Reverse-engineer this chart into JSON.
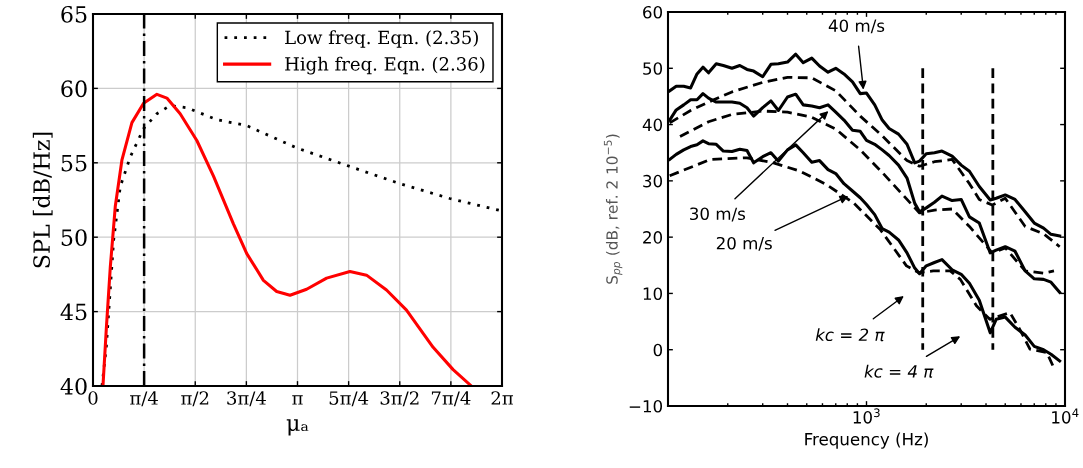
{
  "chart_data": [
    {
      "type": "line",
      "xlabel": "μₐ",
      "ylabel": "SPL [dB/Hz]",
      "xlim": [
        0,
        6.2832
      ],
      "ylim": [
        40,
        65
      ],
      "xticks": [
        0,
        {
          "value": 0.7854,
          "label": "π/4"
        },
        {
          "value": 1.5708,
          "label": "π/2"
        },
        {
          "value": 2.3562,
          "label": "3π/4"
        },
        {
          "value": 3.1416,
          "label": "π"
        },
        {
          "value": 3.927,
          "label": "5π/4"
        },
        {
          "value": 4.7124,
          "label": "3π/2"
        },
        {
          "value": 5.4978,
          "label": "7π/4"
        },
        {
          "value": 6.2832,
          "label": "2π"
        }
      ],
      "yticks": [
        40,
        45,
        50,
        55,
        60,
        65
      ],
      "grid": true,
      "legend": "top right",
      "ref_lines": [
        {
          "axis": "x",
          "value": 0.7854,
          "color": "#000000",
          "line_style": "dashdot"
        }
      ],
      "series": [
        {
          "name": "Low freq. Eqn. (2.35)",
          "color": "#000000",
          "line_style": "dotted",
          "x": [
            0.138,
            0.204,
            0.317,
            0.419,
            0.573,
            0.777,
            0.982,
            1.186,
            1.442,
            1.902,
            2.362,
            3.129,
            3.947,
            4.714,
            5.481,
            6.247
          ],
          "values": [
            40,
            42.6,
            49.8,
            53.4,
            55.4,
            57.3,
            58.3,
            58.85,
            58.7,
            57.9,
            57.5,
            56.0,
            54.75,
            53.6,
            52.6,
            51.8
          ]
        },
        {
          "name": "High freq. Eqn. (2.36)",
          "color": "#ff0000",
          "line_style": "solid",
          "x": [
            0.153,
            0.204,
            0.266,
            0.343,
            0.445,
            0.598,
            0.777,
            0.982,
            1.135,
            1.339,
            1.595,
            1.851,
            2.157,
            2.362,
            2.618,
            2.822,
            3.027,
            3.282,
            3.589,
            3.947,
            4.202,
            4.509,
            4.816,
            5.225,
            5.532,
            5.813
          ],
          "values": [
            40,
            43.8,
            48.0,
            52.1,
            55.2,
            57.7,
            59.0,
            59.6,
            59.35,
            58.3,
            56.5,
            54.1,
            50.9,
            48.9,
            47.1,
            46.35,
            46.1,
            46.5,
            47.25,
            47.7,
            47.45,
            46.45,
            45.1,
            42.6,
            41.1,
            40
          ]
        }
      ]
    },
    {
      "type": "line",
      "xlabel": "Frequency (Hz)",
      "ylabel": "S$_{pp}$ (dB, ref. 2 10$^{−5}$)",
      "log": "x",
      "xlim": [
        100,
        10000
      ],
      "ylim": [
        -10,
        60
      ],
      "xticks": [
        {
          "value": 1000,
          "label": "10$^{3}$"
        },
        {
          "value": 10000,
          "label": "10$^{4}$"
        }
      ],
      "yticks": [
        {
          "value": -10,
          "label": "−10"
        },
        0,
        10,
        20,
        30,
        40,
        50,
        60
      ],
      "grid": false,
      "annotations": [
        {
          "text": "40 m/s",
          "x": 965,
          "y": 46.2
        },
        {
          "text": "30 m/s",
          "x": 643,
          "y": 42.4
        },
        {
          "text": "20 m/s",
          "x": 810,
          "y": 27.3
        },
        "kc = 2 π",
        "kc = 4 π"
      ],
      "series": [
        {
          "color": "#000000",
          "line_style": "solid",
          "x": [
            102,
            110,
            120,
            130,
            140,
            150,
            160,
            175,
            190,
            210,
            230,
            250,
            270,
            300,
            330,
            360,
            400,
            440,
            480,
            530,
            580,
            640,
            700,
            770,
            850,
            930,
            1000,
            1100,
            1200,
            1300,
            1450,
            1600,
            1750,
            1850,
            2000,
            2200,
            2400,
            2700,
            3000,
            3300,
            3700,
            4200,
            4500,
            5000,
            5600,
            6300,
            7000,
            7800,
            8500,
            9400
          ],
          "values": [
            46,
            46.8,
            46.8,
            46.5,
            49,
            50.2,
            49.2,
            50.8,
            50.5,
            50,
            50.5,
            49.8,
            49.5,
            48.5,
            50.7,
            50.8,
            51.1,
            52.5,
            51,
            51.8,
            50.4,
            49.3,
            50,
            49,
            47.6,
            45.5,
            45.6,
            43.5,
            40.8,
            39.3,
            38.3,
            36.5,
            33.2,
            33.5,
            34.8,
            35,
            35.3,
            34.4,
            32.8,
            31.7,
            29,
            26.6,
            26.9,
            27.5,
            26.7,
            24.5,
            22.5,
            21.6,
            20.5,
            20.2
          ]
        },
        {
          "color": "#000000",
          "line_style": "solid",
          "x": [
            102,
            110,
            120,
            130,
            140,
            150,
            160,
            175,
            190,
            210,
            230,
            250,
            270,
            300,
            330,
            360,
            400,
            440,
            480,
            530,
            580,
            640,
            700,
            770,
            850,
            930,
            1000,
            1100,
            1200,
            1300,
            1450,
            1600,
            1750,
            1850,
            2000,
            2200,
            2400,
            2700,
            3000,
            3300,
            3700,
            4200,
            4500,
            5000,
            5600,
            6300,
            7000,
            7800,
            8500,
            9400
          ],
          "values": [
            40.8,
            42.6,
            43.5,
            44.4,
            44.4,
            45.5,
            44.7,
            44,
            44,
            44,
            43.8,
            43,
            41.5,
            43,
            44.2,
            42.5,
            44.9,
            45.4,
            43.5,
            43.3,
            43,
            43.5,
            42.2,
            40.8,
            39,
            38.8,
            37.2,
            36.5,
            35.5,
            34.5,
            32.8,
            30.5,
            26,
            24.5,
            25.2,
            26.2,
            27.3,
            26.5,
            26.7,
            23.6,
            22.5,
            17.2,
            17.7,
            18.3,
            17.5,
            14,
            12.6,
            12.5,
            12,
            10.2
          ]
        },
        {
          "color": "#000000",
          "line_style": "solid",
          "x": [
            102,
            110,
            120,
            130,
            140,
            150,
            160,
            175,
            190,
            210,
            230,
            250,
            270,
            300,
            330,
            360,
            400,
            440,
            480,
            530,
            580,
            640,
            700,
            770,
            850,
            930,
            1000,
            1100,
            1200,
            1300,
            1450,
            1600,
            1750,
            1850,
            2000,
            2200,
            2400,
            2700,
            3000,
            3300,
            3700,
            4200,
            4500,
            5000,
            5600,
            6300,
            7000,
            7800,
            8500,
            9400
          ],
          "values": [
            33.8,
            34.7,
            35.5,
            36.1,
            36.4,
            37.1,
            36.6,
            36.5,
            35.3,
            35.2,
            35.6,
            35.4,
            33.2,
            34.3,
            35,
            33.5,
            35.5,
            36.4,
            35,
            33.3,
            33.6,
            32,
            31.3,
            29.5,
            28.2,
            27,
            25.8,
            24,
            21.5,
            20.9,
            19.5,
            17.2,
            14.5,
            13.5,
            14.9,
            15.5,
            16,
            14.2,
            13.4,
            11.8,
            8.8,
            3,
            5.4,
            5.8,
            4,
            2.6,
            0.6,
            0,
            -0.8,
            -2
          ]
        },
        {
          "color": "#000000",
          "line_style": "dashed",
          "x": [
            102,
            130,
            160,
            210,
            300,
            400,
            530,
            700,
            930,
            1200,
            1600,
            1850,
            2200,
            2700,
            3300,
            3700,
            4300,
            5000,
            6300,
            7800,
            9400
          ],
          "values": [
            40.3,
            42.5,
            44,
            45.8,
            47.5,
            48.4,
            48.3,
            46,
            41.5,
            38,
            33.6,
            32.6,
            33.4,
            33.8,
            29.5,
            26.7,
            25.7,
            26.9,
            21.9,
            20.6,
            18.3
          ]
        },
        {
          "color": "#000000",
          "line_style": "dashed",
          "x": [
            115,
            160,
            210,
            300,
            400,
            530,
            700,
            930,
            1200,
            1600,
            1850,
            2200,
            2700,
            3300,
            4300,
            5000,
            6300,
            7800,
            8800
          ],
          "values": [
            37.9,
            40.5,
            41.8,
            42.4,
            42.2,
            41.3,
            39.2,
            35.5,
            31.5,
            26.7,
            24.3,
            24.8,
            25,
            21.9,
            17.2,
            18.1,
            14,
            13.6,
            14
          ]
        },
        {
          "color": "#000000",
          "line_style": "dashed",
          "x": [
            102,
            163,
            250,
            340,
            464,
            631,
            860,
            1170,
            1590,
            1830,
            2170,
            2640,
            2970,
            3580,
            4180,
            5280,
            5920,
            6660,
            8100,
            8700
          ],
          "values": [
            30.9,
            33.8,
            34.1,
            33.2,
            31.7,
            29.3,
            26.1,
            21.4,
            14.9,
            13.7,
            14,
            14,
            12.5,
            7.8,
            5.4,
            6.6,
            3.6,
            0.1,
            -0.5,
            -2.9
          ]
        },
        {
          "color": "#000000",
          "line_style": "dashed",
          "x": [
            1920,
            1920
          ],
          "values": [
            50,
            0
          ]
        },
        {
          "color": "#000000",
          "line_style": "dashed",
          "x": [
            4330,
            4330
          ],
          "values": [
            50,
            0
          ]
        }
      ]
    }
  ]
}
